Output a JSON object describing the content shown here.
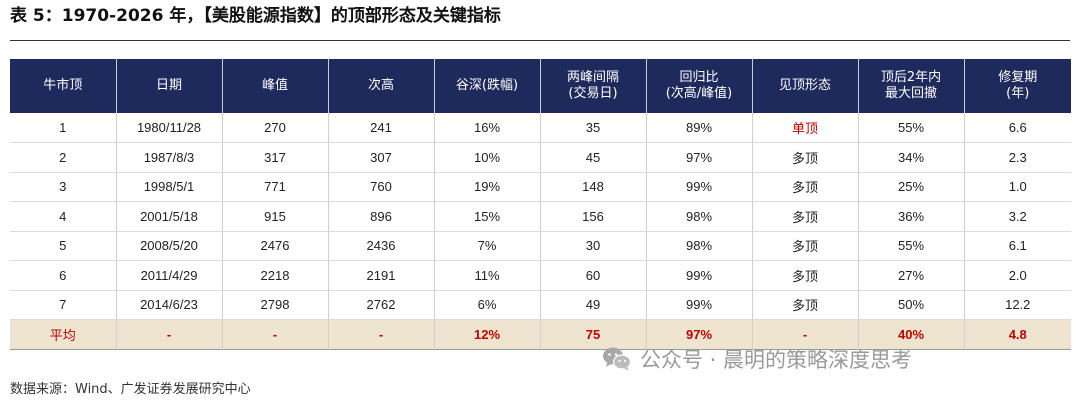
{
  "title": "表 5：1970-2026 年，【美股能源指数】的顶部形态及关键指标",
  "table": {
    "headers": [
      [
        "牛市顶"
      ],
      [
        "日期"
      ],
      [
        "峰值"
      ],
      [
        "次高"
      ],
      [
        "谷深(跌幅)"
      ],
      [
        "两峰间隔",
        "(交易日)"
      ],
      [
        "回归比",
        "(次高/峰值)"
      ],
      [
        "见顶形态"
      ],
      [
        "顶后2年内",
        "最大回撤"
      ],
      [
        "修复期",
        "(年)"
      ]
    ],
    "rows": [
      [
        "1",
        "1980/11/28",
        "270",
        "241",
        "16%",
        "35",
        "89%",
        "单顶",
        "55%",
        "6.6"
      ],
      [
        "2",
        "1987/8/3",
        "317",
        "307",
        "10%",
        "45",
        "97%",
        "多顶",
        "34%",
        "2.3"
      ],
      [
        "3",
        "1998/5/1",
        "771",
        "760",
        "19%",
        "148",
        "99%",
        "多顶",
        "25%",
        "1.0"
      ],
      [
        "4",
        "2001/5/18",
        "915",
        "896",
        "15%",
        "156",
        "98%",
        "多顶",
        "36%",
        "3.2"
      ],
      [
        "5",
        "2008/5/20",
        "2476",
        "2436",
        "7%",
        "30",
        "98%",
        "多顶",
        "55%",
        "6.1"
      ],
      [
        "6",
        "2011/4/29",
        "2218",
        "2191",
        "11%",
        "60",
        "99%",
        "多顶",
        "27%",
        "2.0"
      ],
      [
        "7",
        "2014/6/23",
        "2798",
        "2762",
        "6%",
        "49",
        "99%",
        "多顶",
        "50%",
        "12.2"
      ]
    ],
    "average": [
      "平均",
      "-",
      "-",
      "-",
      "12%",
      "75",
      "97%",
      "-",
      "40%",
      "4.8"
    ],
    "highlight_color": "#c00000",
    "header_bg": "#1f2a5c",
    "average_bg": "#efe4cf"
  },
  "watermark": {
    "icon": "wechat-icon",
    "text": "公众号 · 晨明的策略深度思考"
  },
  "source": "数据来源：Wind、广发证券发展研究中心"
}
